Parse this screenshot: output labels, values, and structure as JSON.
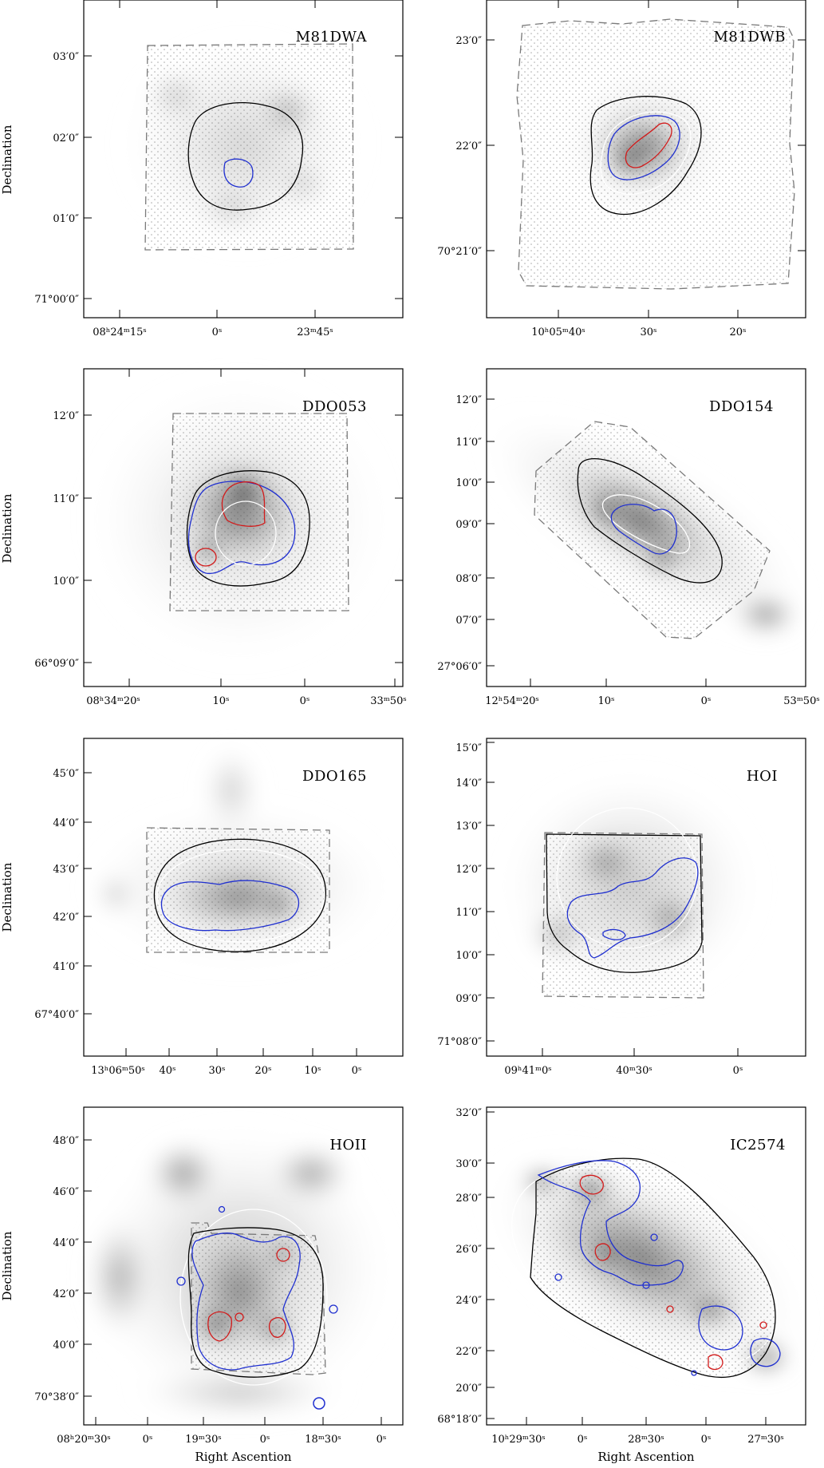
{
  "figure": {
    "panels": [
      {
        "name": "M81DWA",
        "yticks": [
          "03′0″",
          "02′0″",
          "01′0″",
          "71°00′0″"
        ],
        "xticks": [
          "08ʰ24ᵐ15ˢ",
          "0ˢ",
          "23ᵐ45ˢ"
        ]
      },
      {
        "name": "M81DWB",
        "yticks": [
          "23′0″",
          "22′0″",
          "70°21′0″"
        ],
        "xticks": [
          "10ʰ05ᵐ40ˢ",
          "30ˢ",
          "20ˢ"
        ]
      },
      {
        "name": "DDO053",
        "yticks": [
          "12′0″",
          "11′0″",
          "10′0″",
          "66°09′0″"
        ],
        "xticks": [
          "08ʰ34ᵐ20ˢ",
          "10ˢ",
          "0ˢ",
          "33ᵐ50ˢ"
        ]
      },
      {
        "name": "DDO154",
        "yticks": [
          "12′0″",
          "11′0″",
          "10′0″",
          "09′0″",
          "08′0″",
          "07′0″",
          "27°06′0″"
        ],
        "xticks": [
          "12ʰ54ᵐ20ˢ",
          "10ˢ",
          "0ˢ",
          "53ᵐ50ˢ"
        ]
      },
      {
        "name": "DDO165",
        "yticks": [
          "45′0″",
          "44′0″",
          "43′0″",
          "42′0″",
          "41′0″",
          "67°40′0″"
        ],
        "xticks": [
          "13ʰ06ᵐ50ˢ",
          "40ˢ",
          "30ˢ",
          "20ˢ",
          "10ˢ",
          "0ˢ"
        ]
      },
      {
        "name": "HOI",
        "yticks": [
          "15′0″",
          "14′0″",
          "13′0″",
          "12′0″",
          "11′0″",
          "10′0″",
          "09′0″",
          "71°08′0″"
        ],
        "xticks": [
          "09ʰ41ᵐ0ˢ",
          "40ᵐ30ˢ",
          "0ˢ"
        ]
      },
      {
        "name": "HOII",
        "yticks": [
          "48′0″",
          "46′0″",
          "44′0″",
          "42′0″",
          "40′0″",
          "70°38′0″"
        ],
        "xticks": [
          "08ʰ20ᵐ30ˢ",
          "0ˢ",
          "19ᵐ30ˢ",
          "0ˢ",
          "18ᵐ30ˢ",
          "0ˢ"
        ]
      },
      {
        "name": "IC2574",
        "yticks": [
          "32′0″",
          "30′0″",
          "28′0″",
          "26′0″",
          "24′0″",
          "22′0″",
          "20′0″",
          "68°18′0″"
        ],
        "xticks": [
          "10ʰ29ᵐ30ˢ",
          "0ˢ",
          "28ᵐ30ˢ",
          "0ˢ",
          "27ᵐ30ˢ"
        ]
      }
    ],
    "ylabel": "Declination",
    "xlabel": "Right Ascention",
    "colors": {
      "outer_contour": "#000000",
      "mid_contour": "#1f2fd0",
      "inner_contour": "#d21a1a",
      "ellipse": "#ffffff",
      "footprint": "#7a7a7a"
    }
  }
}
